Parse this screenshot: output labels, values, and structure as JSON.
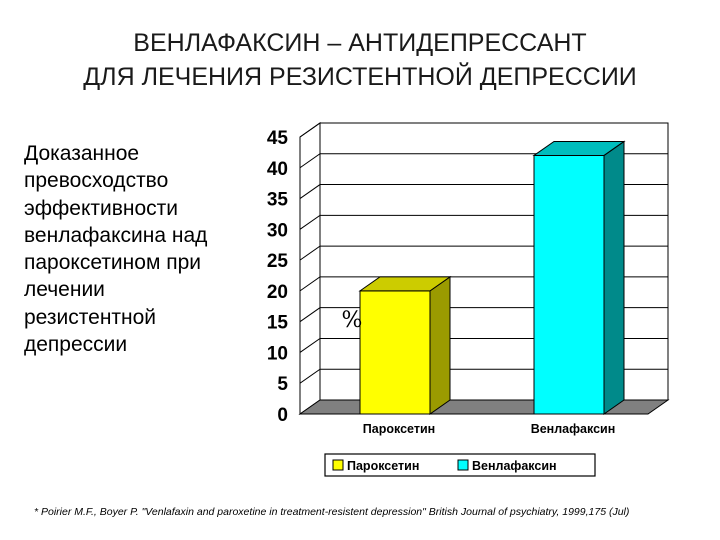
{
  "slide": {
    "title_lines": [
      "ВЕНЛАФАКСИН – АНТИДЕПРЕССАНТ",
      "ДЛЯ ЛЕЧЕНИЯ  РЕЗИСТЕНТНОЙ ДЕПРЕССИИ"
    ],
    "left_text_lines": [
      "Доказанное",
      "превосходство",
      "эффективности",
      "венлафаксина над",
      "пароксетином при",
      "лечении",
      "резистентной",
      "депрессии"
    ],
    "footnote": "*  Poirier M.F., Boyer P. \"Venlafaxin and paroxetine in treatment-resistent depression\" British Journal of psychiatry, 1999,175 (Jul)"
  },
  "chart_data": {
    "type": "bar",
    "style": "3d",
    "categories": [
      "Пароксетин",
      "Венлафаксин"
    ],
    "values": [
      20,
      42
    ],
    "ylim": [
      0,
      45
    ],
    "yticks": [
      0,
      5,
      10,
      15,
      20,
      25,
      30,
      35,
      40,
      45
    ],
    "unit_label": "%",
    "grid": true,
    "legend": {
      "position": "bottom",
      "entries": [
        {
          "label": "Пароксетин",
          "color": "#ffff00"
        },
        {
          "label": "Венлафаксин",
          "color": "#00ffff"
        }
      ]
    },
    "colors": {
      "bars": [
        "#ffff00",
        "#00ffff"
      ],
      "bars_side": [
        "#9b9b00",
        "#008a8a"
      ],
      "bars_top": [
        "#cccc00",
        "#00bdbd"
      ],
      "floor": "#808080",
      "walls": "#ffffff",
      "gridlines": "#000000"
    }
  }
}
